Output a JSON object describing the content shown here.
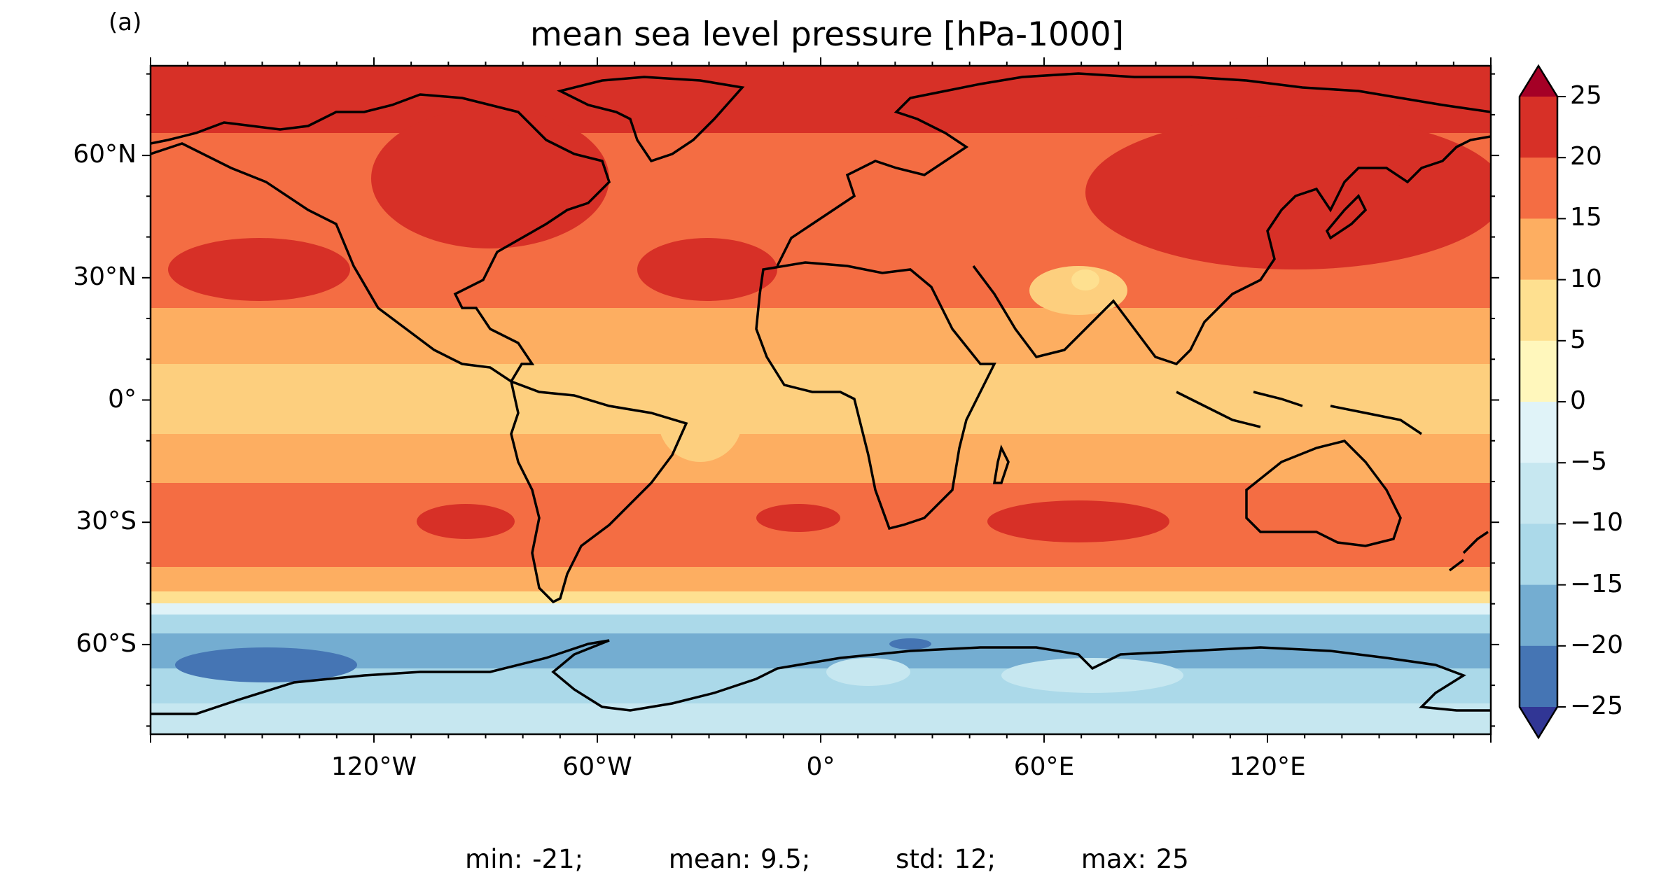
{
  "panel_label": "(a)",
  "title": "mean sea level pressure [hPa-1000]",
  "stats": {
    "min": "min: -21;",
    "mean": "mean: 9.5;",
    "std": "std: 12;",
    "max": "max: 25"
  },
  "lat_ticks": [
    "60°N",
    "30°N",
    "0°",
    "30°S",
    "60°S"
  ],
  "lon_ticks": [
    "120°W",
    "60°W",
    "0°",
    "60°E",
    "120°E"
  ],
  "colorbar": {
    "labels": [
      "25",
      "20",
      "15",
      "10",
      "5",
      "0",
      "−5",
      "−10",
      "−15",
      "−20",
      "−25"
    ],
    "levels": [
      25,
      20,
      15,
      10,
      5,
      0,
      -5,
      -10,
      -15,
      -20,
      -25
    ],
    "colors_top_to_bottom": [
      "#d73027",
      "#f46d43",
      "#fdae61",
      "#fee090",
      "#fff7bc",
      "#e0f3f8",
      "#c6e7f0",
      "#abd9e9",
      "#74add1",
      "#4575b4"
    ],
    "extend_max_color": "#a50026",
    "extend_min_color": "#313695"
  },
  "colors": {
    "land_outline": "#000000",
    "band_high": "#d73027",
    "band_midhigh": "#f46d43",
    "band_mid": "#fdae61",
    "band_low": "#fee090",
    "band_neg5": "#c6e7f0",
    "band_neg10": "#abd9e9",
    "band_neg15": "#74add1",
    "band_neg20": "#4575b4"
  }
}
